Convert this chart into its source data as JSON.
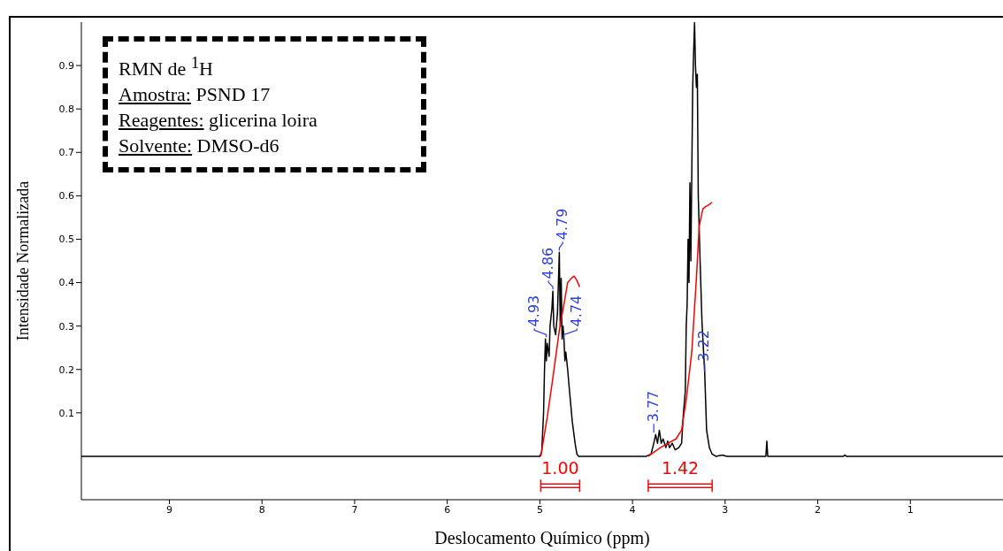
{
  "chart_data": {
    "type": "line",
    "title": "RMN de $^{1}$H",
    "xlabel": "Deslocamento Químico (ppm)",
    "ylabel": "Intensidade Normalizada",
    "annotations": [
      "Amostra: PSND 17",
      "Reagentes: glicerina loira",
      "Solvente: DMSO-d6",
      {
        "text": "4.93",
        "x": 4.93,
        "y": 0.27
      },
      {
        "text": "4.86",
        "x": 4.86,
        "y": 0.38
      },
      {
        "text": "4.79",
        "x": 4.79,
        "y": 0.47
      },
      {
        "text": "4.74",
        "x": 4.74,
        "y": 0.27
      },
      {
        "text": "3.77",
        "x": 3.77,
        "y": 0.05
      },
      {
        "text": "3.22",
        "x": 3.22,
        "y": 0.19
      },
      "1.00",
      "1.42"
    ],
    "series": [
      {
        "color": "#000000",
        "x": [
          9.95,
          5.0,
          4.98,
          4.96,
          4.95,
          4.94,
          4.93,
          4.92,
          4.9,
          4.89,
          4.87,
          4.86,
          4.85,
          4.83,
          4.81,
          4.8,
          4.79,
          4.78,
          4.77,
          4.76,
          4.75,
          4.74,
          4.73,
          4.72,
          4.7,
          4.68,
          4.65,
          4.62,
          4.6,
          4.58,
          3.85,
          3.8,
          3.77,
          3.75,
          3.73,
          3.71,
          3.69,
          3.67,
          3.64,
          3.62,
          3.6,
          3.57,
          3.54,
          3.5,
          3.47,
          3.45,
          3.43,
          3.42,
          3.41,
          3.4,
          3.39,
          3.38,
          3.37,
          3.36,
          3.35,
          3.34,
          3.33,
          3.32,
          3.31,
          3.3,
          3.29,
          3.27,
          3.25,
          3.22,
          3.2,
          3.17,
          3.14,
          3.1,
          3.03,
          2.98,
          2.56,
          2.55,
          2.54,
          1.72,
          1.71,
          1.69,
          0
        ],
        "values": [
          0,
          0,
          0.01,
          0.1,
          0.2,
          0.27,
          0.22,
          0.26,
          0.23,
          0.3,
          0.34,
          0.38,
          0.3,
          0.28,
          0.33,
          0.4,
          0.47,
          0.3,
          0.41,
          0.27,
          0.3,
          0.27,
          0.22,
          0.24,
          0.2,
          0.15,
          0.08,
          0.03,
          0.005,
          0,
          0,
          0.005,
          0.03,
          0.05,
          0.03,
          0.06,
          0.03,
          0.04,
          0.02,
          0.035,
          0.02,
          0.03,
          0.015,
          0.02,
          0.03,
          0.1,
          0.15,
          0.3,
          0.35,
          0.5,
          0.4,
          0.63,
          0.45,
          0.65,
          0.85,
          0.93,
          1.0,
          0.9,
          0.85,
          0.88,
          0.6,
          0.45,
          0.31,
          0.19,
          0.06,
          0.02,
          0.005,
          0,
          0.003,
          0,
          0,
          0.035,
          0,
          0,
          0.003,
          0,
          0
        ]
      },
      {
        "color": "#ff0000",
        "x": [
          4.99,
          4.92,
          4.86,
          4.79,
          4.74,
          4.7,
          4.66,
          4.63,
          4.6,
          4.57
        ],
        "values": [
          0,
          0.09,
          0.18,
          0.29,
          0.35,
          0.4,
          0.41,
          0.415,
          0.405,
          0.39
        ]
      },
      {
        "color": "#ff0000",
        "x": [
          3.83,
          3.7,
          3.53,
          3.47,
          3.42,
          3.36,
          3.31,
          3.28,
          3.24,
          3.21,
          3.17,
          3.14
        ],
        "values": [
          0,
          0.02,
          0.04,
          0.06,
          0.13,
          0.24,
          0.41,
          0.53,
          0.57,
          0.575,
          0.58,
          0.585
        ]
      }
    ],
    "xlim": [
      9.95,
      0
    ],
    "xticks": [
      9,
      8,
      7,
      6,
      5,
      4,
      3,
      2,
      1
    ],
    "ylim": [
      -0.1,
      1.0
    ],
    "yticks": [
      0.1,
      0.2,
      0.3,
      0.4,
      0.5,
      0.6,
      0.7,
      0.8,
      0.9
    ],
    "grid": false,
    "marker": "none",
    "line_style": "solid"
  }
}
